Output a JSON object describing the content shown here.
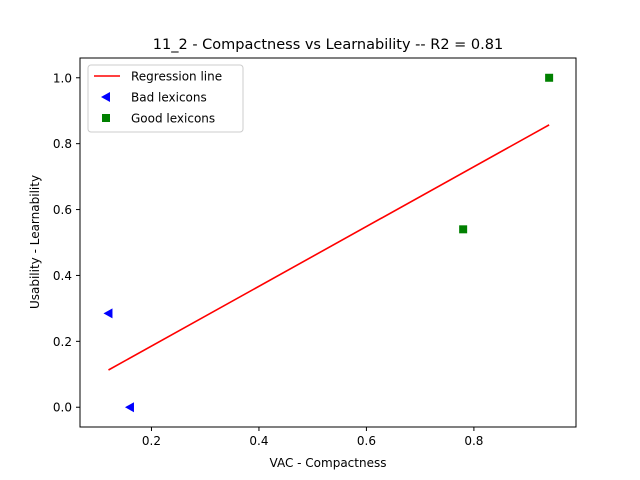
{
  "chart_data": {
    "type": "scatter",
    "title": "11_2 - Compactness  vs  Learnability -- R2 = 0.81",
    "xlabel": "VAC - Compactness",
    "ylabel": "Usability - Learnability",
    "xlim": [
      0.067,
      0.99
    ],
    "ylim": [
      -0.06,
      1.06
    ],
    "xticks": [
      0.2,
      0.4,
      0.6,
      0.8
    ],
    "xtick_labels": [
      "0.2",
      "0.4",
      "0.6",
      "0.8"
    ],
    "yticks": [
      0.0,
      0.2,
      0.4,
      0.6,
      0.8,
      1.0
    ],
    "ytick_labels": [
      "0.0",
      "0.2",
      "0.4",
      "0.6",
      "0.8",
      "1.0"
    ],
    "grid": false,
    "legend_position": "top-left",
    "series": [
      {
        "name": "Regression line",
        "kind": "line",
        "color": "#ff0000",
        "x": [
          0.12,
          0.94
        ],
        "y": [
          0.113,
          0.857
        ]
      },
      {
        "name": "Bad lexicons",
        "kind": "scatter",
        "marker": "triangle-left",
        "color": "#0000ff",
        "x": [
          0.12,
          0.16
        ],
        "y": [
          0.285,
          0.0
        ]
      },
      {
        "name": "Good lexicons",
        "kind": "scatter",
        "marker": "square",
        "color": "#008000",
        "x": [
          0.78,
          0.94
        ],
        "y": [
          0.54,
          1.0
        ]
      }
    ]
  }
}
